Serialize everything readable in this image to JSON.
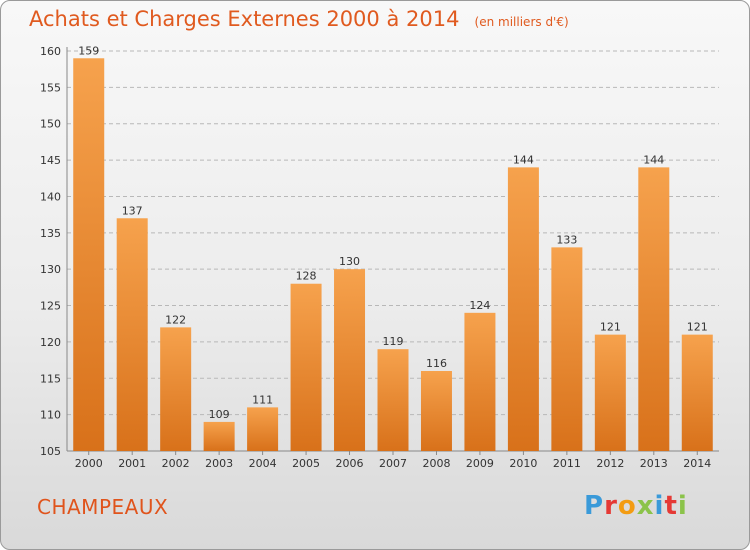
{
  "header": {
    "title": "Achats et Charges Externes 2000 à 2014",
    "unit_note": "(en milliers d'€)"
  },
  "footer": {
    "town": "CHAMPEAUX",
    "logo_text": "Proxiti",
    "logo_colors": [
      "#3a9ad9",
      "#e53935",
      "#f39c12",
      "#8bc34a",
      "#3a9ad9",
      "#e53935",
      "#8bc34a"
    ]
  },
  "colors": {
    "title": "#e05a1f",
    "bar_top": "#f6a24d",
    "bar_bottom": "#d8711a",
    "grid": "#b8b8b8",
    "axis_text": "#333333"
  },
  "chart_data": {
    "type": "bar",
    "title": "Achats et Charges Externes 2000 à 2014",
    "subtitle": "(en milliers d'€)",
    "categories": [
      "2000",
      "2001",
      "2002",
      "2003",
      "2004",
      "2005",
      "2006",
      "2007",
      "2008",
      "2009",
      "2010",
      "2011",
      "2012",
      "2013",
      "2014"
    ],
    "values": [
      159,
      137,
      122,
      109,
      111,
      128,
      130,
      119,
      116,
      124,
      144,
      133,
      121,
      144,
      121
    ],
    "ylim": [
      105,
      160
    ],
    "yticks": [
      105,
      110,
      115,
      120,
      125,
      130,
      135,
      140,
      145,
      150,
      155,
      160
    ],
    "grid": true,
    "xlabel": "",
    "ylabel": ""
  }
}
